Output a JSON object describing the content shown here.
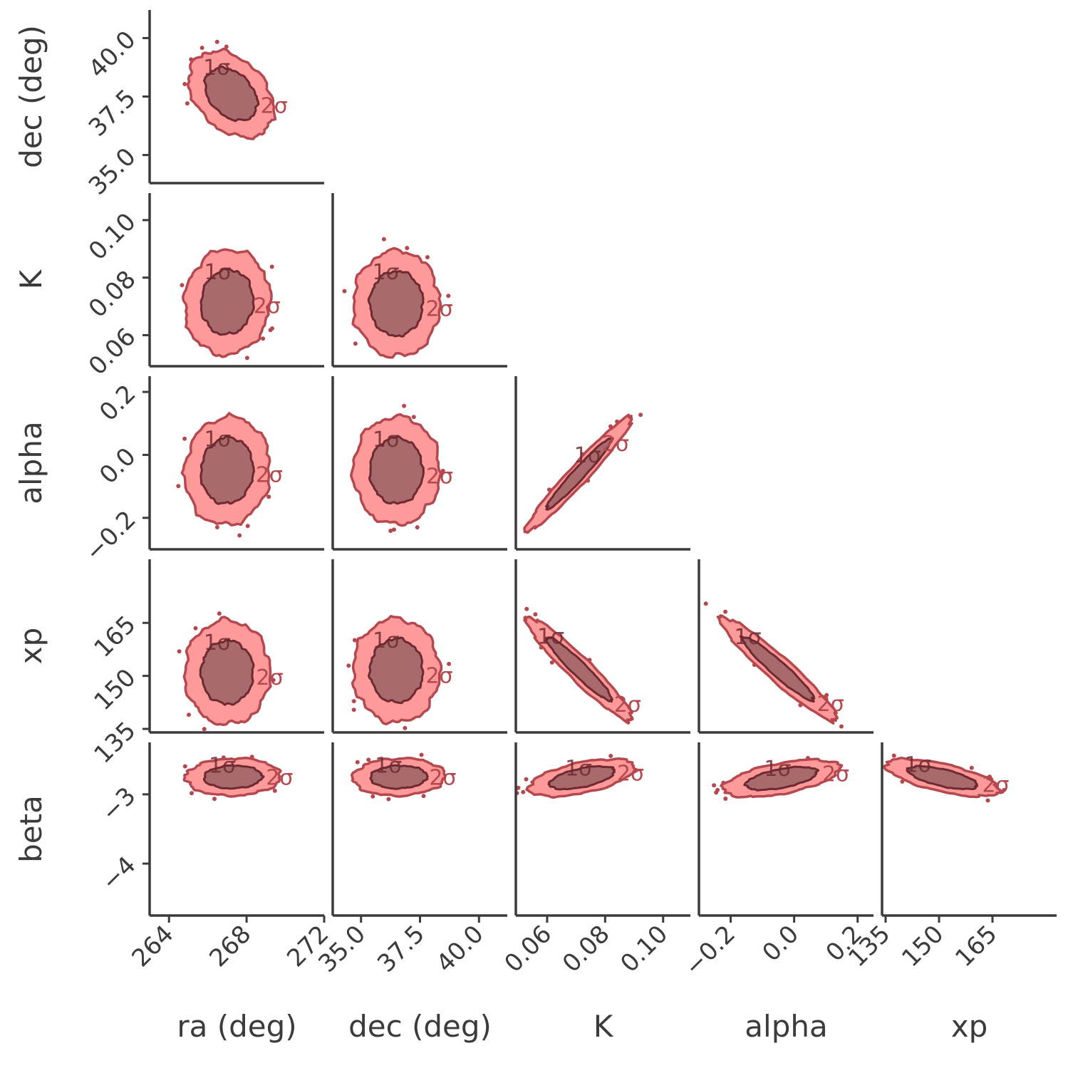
{
  "chart_data": {
    "type": "corner",
    "style": {
      "fill_outer": "#ff9a9a",
      "fill_inner": "#a86a6c",
      "line_color": "#b5484f",
      "line_inner": "#6e2a30",
      "axis_color": "#3b3b3b"
    },
    "parameters": [
      {
        "name": "ra",
        "label": "ra (deg)",
        "range": [
          263.0,
          272.0
        ],
        "ticks": [
          264,
          268,
          272
        ],
        "tick_labels": [
          "264",
          "268",
          "272"
        ]
      },
      {
        "name": "dec",
        "label": "dec (deg)",
        "range": [
          33.8,
          41.2
        ],
        "ticks": [
          35.0,
          37.5,
          40.0
        ],
        "tick_labels": [
          "35.0",
          "37.5",
          "40.0"
        ]
      },
      {
        "name": "K",
        "label": "K",
        "range": [
          0.0492,
          0.1094
        ],
        "ticks": [
          0.06,
          0.08,
          0.1
        ],
        "tick_labels": [
          "0.06",
          "0.08",
          "0.10"
        ]
      },
      {
        "name": "alpha",
        "label": "alpha",
        "range": [
          -0.3,
          0.25
        ],
        "ticks": [
          -0.2,
          0.0,
          0.2
        ],
        "tick_labels": [
          "−0.2",
          "0.0",
          "0.2"
        ]
      },
      {
        "name": "xp",
        "label": "xp",
        "range": [
          134.0,
          183.0
        ],
        "ticks": [
          135,
          150,
          165
        ],
        "tick_labels": [
          "135",
          "150",
          "165"
        ]
      },
      {
        "name": "beta",
        "label": "beta",
        "range": [
          -4.75,
          -2.25
        ],
        "ticks": [
          -3,
          -4
        ],
        "tick_labels": [
          "−3",
          "−4"
        ]
      }
    ],
    "panels": [
      {
        "x": "ra",
        "y": "dec",
        "center": [
          267.2,
          37.6
        ],
        "sigma": [
          0.9,
          0.75
        ],
        "rho": -0.35,
        "label_1": "1σ",
        "label_2": "2σ"
      },
      {
        "x": "ra",
        "y": "K",
        "center": [
          267.0,
          0.0715
        ],
        "sigma": [
          0.9,
          0.0075
        ],
        "rho": 0.05,
        "label_1": "1σ",
        "label_2": "2σ"
      },
      {
        "x": "dec",
        "y": "K",
        "center": [
          36.5,
          0.071
        ],
        "sigma": [
          0.75,
          0.0075
        ],
        "rho": 0.0,
        "label_1": "1σ",
        "label_2": "2σ"
      },
      {
        "x": "ra",
        "y": "alpha",
        "center": [
          267.0,
          -0.05
        ],
        "sigma": [
          0.9,
          0.07
        ],
        "rho": 0.05,
        "label_1": "1σ",
        "label_2": "2σ"
      },
      {
        "x": "dec",
        "y": "alpha",
        "center": [
          36.5,
          -0.05
        ],
        "sigma": [
          0.75,
          0.07
        ],
        "rho": 0.0,
        "label_1": "1σ",
        "label_2": "2σ"
      },
      {
        "x": "K",
        "y": "alpha",
        "center": [
          0.071,
          -0.06
        ],
        "sigma": [
          0.0075,
          0.075
        ],
        "rho": 0.97,
        "label_1": "1σ",
        "label_2": "2σ"
      },
      {
        "x": "ra",
        "y": "xp",
        "center": [
          267.0,
          151.0
        ],
        "sigma": [
          0.9,
          6.0
        ],
        "rho": 0.0,
        "label_1": "1σ",
        "label_2": "2σ"
      },
      {
        "x": "dec",
        "y": "xp",
        "center": [
          36.5,
          151.5
        ],
        "sigma": [
          0.75,
          6.0
        ],
        "rho": 0.0,
        "label_1": "1σ",
        "label_2": "2σ"
      },
      {
        "x": "K",
        "y": "xp",
        "center": [
          0.071,
          152.0
        ],
        "sigma": [
          0.0075,
          6.0
        ],
        "rho": -0.95,
        "label_1": "1σ",
        "label_2": "2σ"
      },
      {
        "x": "alpha",
        "y": "xp",
        "center": [
          -0.05,
          152.0
        ],
        "sigma": [
          0.075,
          6.0
        ],
        "rho": -0.95,
        "label_1": "1σ",
        "label_2": "2σ"
      },
      {
        "x": "ra",
        "y": "beta",
        "center": [
          267.3,
          -2.75
        ],
        "sigma": [
          1.0,
          0.11
        ],
        "rho": 0.05,
        "label_1": "1σ",
        "label_2": "2σ"
      },
      {
        "x": "dec",
        "y": "beta",
        "center": [
          36.6,
          -2.75
        ],
        "sigma": [
          0.8,
          0.11
        ],
        "rho": 0.05,
        "label_1": "1σ",
        "label_2": "2σ"
      },
      {
        "x": "K",
        "y": "beta",
        "center": [
          0.072,
          -2.76
        ],
        "sigma": [
          0.0075,
          0.11
        ],
        "rho": 0.55,
        "label_1": "1σ",
        "label_2": "2σ"
      },
      {
        "x": "alpha",
        "y": "beta",
        "center": [
          -0.04,
          -2.77
        ],
        "sigma": [
          0.075,
          0.11
        ],
        "rho": 0.55,
        "label_1": "1σ",
        "label_2": "2σ"
      },
      {
        "x": "xp",
        "y": "beta",
        "center": [
          151.0,
          -2.76
        ],
        "sigma": [
          6.5,
          0.11
        ],
        "rho": -0.65,
        "label_1": "1σ",
        "label_2": "2σ"
      }
    ]
  }
}
